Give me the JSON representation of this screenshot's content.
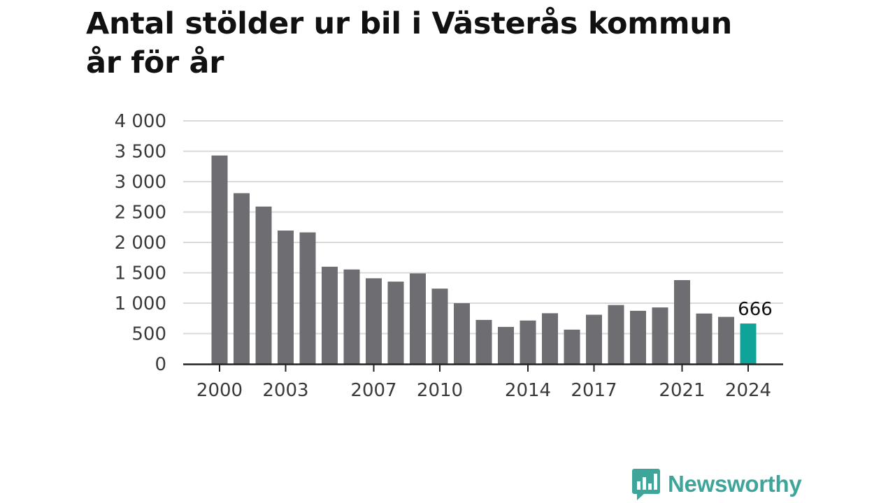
{
  "title_line1": "Antal stölder ur bil i Västerås kommun",
  "title_line2": "år för år",
  "brand": {
    "name": "Newsworthy",
    "logo_icon": "newsworthy-chart-bubble-icon",
    "color": "#3fa59b"
  },
  "colors": {
    "bar": "#6e6d72",
    "highlight": "#10a39a",
    "grid": "#d9d9d9",
    "axis": "#222222"
  },
  "chart_data": {
    "type": "bar",
    "title": "Antal stölder ur bil i Västerås kommun år för år",
    "xlabel": "",
    "ylabel": "",
    "ylim": [
      0,
      4000
    ],
    "grid": true,
    "yticks": [
      {
        "value": 0,
        "label": "0"
      },
      {
        "value": 500,
        "label": "500"
      },
      {
        "value": 1000,
        "label": "1 000"
      },
      {
        "value": 1500,
        "label": "1 500"
      },
      {
        "value": 2000,
        "label": "2 000"
      },
      {
        "value": 2500,
        "label": "2 500"
      },
      {
        "value": 3000,
        "label": "3 000"
      },
      {
        "value": 3500,
        "label": "3 500"
      },
      {
        "value": 4000,
        "label": "4 000"
      }
    ],
    "xtick_labels": [
      "2000",
      "2003",
      "2007",
      "2010",
      "2014",
      "2017",
      "2021",
      "2024"
    ],
    "categories": [
      "2000",
      "2001",
      "2002",
      "2003",
      "2004",
      "2005",
      "2006",
      "2007",
      "2008",
      "2009",
      "2010",
      "2011",
      "2012",
      "2013",
      "2014",
      "2015",
      "2016",
      "2017",
      "2018",
      "2019",
      "2020",
      "2021",
      "2022",
      "2023",
      "2024"
    ],
    "values": [
      3430,
      2810,
      2590,
      2195,
      2165,
      1600,
      1555,
      1410,
      1355,
      1490,
      1240,
      1000,
      725,
      610,
      715,
      835,
      565,
      810,
      970,
      875,
      930,
      1380,
      830,
      775,
      666
    ],
    "highlight_index": 24,
    "data_labels": [
      {
        "index": 24,
        "label": "666"
      }
    ]
  }
}
